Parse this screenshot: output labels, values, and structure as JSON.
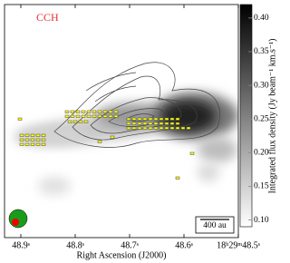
{
  "chart_data": {
    "type": "map",
    "annotation": "CCH",
    "xlabel": "Right Ascension (J2000)",
    "xlim": [
      48.93,
      48.5
    ],
    "xticks": [
      {
        "value": 48.9,
        "label": "48.9ˢ"
      },
      {
        "value": 48.8,
        "label": "48.8ˢ"
      },
      {
        "value": 48.7,
        "label": "48.7ˢ"
      },
      {
        "value": 48.6,
        "label": "48.6ˢ"
      },
      {
        "value": 48.5,
        "label": "18ʰ29ᵐ48.5ˢ"
      }
    ],
    "colorbar": {
      "label": "Integrated flux density (Jy beam⁻¹ km.s⁻¹)",
      "lim": [
        0.09,
        0.42
      ],
      "ticks": [
        {
          "value": 0.1,
          "label": "0.10"
        },
        0.15,
        {
          "value": 0.2,
          "label": "0.20"
        },
        0.25,
        {
          "value": 0.3,
          "label": "0.30"
        },
        0.35,
        {
          "value": 0.4,
          "label": "0.40"
        }
      ]
    },
    "scale_bar": "400 au"
  }
}
